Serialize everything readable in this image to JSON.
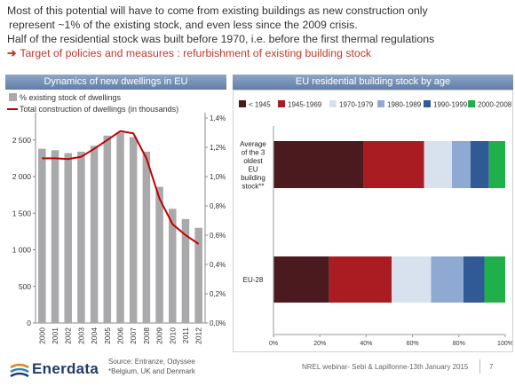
{
  "intro": {
    "line1": "Most of this potential will have to come from existing buildings as new construction only",
    "line2": "represent ~1% of the existing stock, and even less since the 2009 crisis.",
    "line3": "Half of the residential stock was built before 1970, i.e. before  the first thermal regulations",
    "target_arrow": "➔",
    "target": "Target of policies and measures : refurbishment of existing building stock"
  },
  "colors": {
    "panel_header": "#6f8cb5",
    "bar": "#a9a9ab",
    "line": "#c00000",
    "accent_text": "#c0392b"
  },
  "chart_data": [
    {
      "type": "bar",
      "title": "Dynamics of new dwellings in EU",
      "categories": [
        "2000",
        "2001",
        "2002",
        "2003",
        "2004",
        "2005",
        "2006",
        "2007",
        "2008",
        "2009",
        "2010",
        "2011",
        "2012"
      ],
      "series": [
        {
          "name": "% existing stock of dwellings",
          "axis": "right",
          "type": "bar",
          "values": [
            1.19,
            1.18,
            1.16,
            1.17,
            1.21,
            1.28,
            1.3,
            1.27,
            1.17,
            0.93,
            0.78,
            0.71,
            0.65
          ]
        },
        {
          "name": "Total construction of dwellings (in thousands)",
          "axis": "left",
          "type": "line",
          "values": [
            2250,
            2250,
            2240,
            2270,
            2380,
            2500,
            2620,
            2590,
            2250,
            1700,
            1350,
            1200,
            1080
          ]
        }
      ],
      "yleft_ticks": [
        "0",
        "500",
        "1 000",
        "1 500",
        "2 000",
        "2 500"
      ],
      "yleft_lim": [
        0,
        2800
      ],
      "yright_ticks": [
        "0,0%",
        "0,2%",
        "0,4%",
        "0,6%",
        "0,8%",
        "1,0%",
        "1,2%",
        "1,4%"
      ],
      "yright_lim": [
        0,
        1.4
      ],
      "legend": "top-left"
    },
    {
      "type": "bar",
      "orientation": "horizontal-stacked-100",
      "title": "EU residential building stock by age",
      "categories": [
        "Average of the 3 oldest EU building stock**",
        "EU-28"
      ],
      "category_labels": [
        [
          "Average",
          "of the 3",
          "oldest",
          "EU",
          "building",
          "stock**"
        ],
        [
          "EU-28"
        ]
      ],
      "series": [
        {
          "name": "< 1945",
          "color": "#4a1a1f",
          "values": [
            39,
            24
          ]
        },
        {
          "name": "1945-1969",
          "color": "#a81c22",
          "values": [
            26,
            27
          ]
        },
        {
          "name": "1970-1979",
          "color": "#d8e2ef",
          "values": [
            12,
            17
          ]
        },
        {
          "name": "1980-1989",
          "color": "#8eaad2",
          "values": [
            8,
            14
          ]
        },
        {
          "name": "1990-1999",
          "color": "#2f5a96",
          "values": [
            8,
            9
          ]
        },
        {
          "name": "2000-2008",
          "color": "#20b04b",
          "values": [
            7,
            9
          ]
        }
      ],
      "x_ticks": [
        "0%",
        "20%",
        "40%",
        "60%",
        "80%",
        "100%"
      ],
      "xlim": [
        0,
        100
      ],
      "legend": "top"
    }
  ],
  "footer": {
    "logo": "Enerdata",
    "source_line1": "Source: Entranze, Odyssee",
    "source_line2": "*Belgium, UK and Denmark",
    "event": "NREL webinar- Sebi & Lapillonne-13th January 2015",
    "page": "7"
  }
}
